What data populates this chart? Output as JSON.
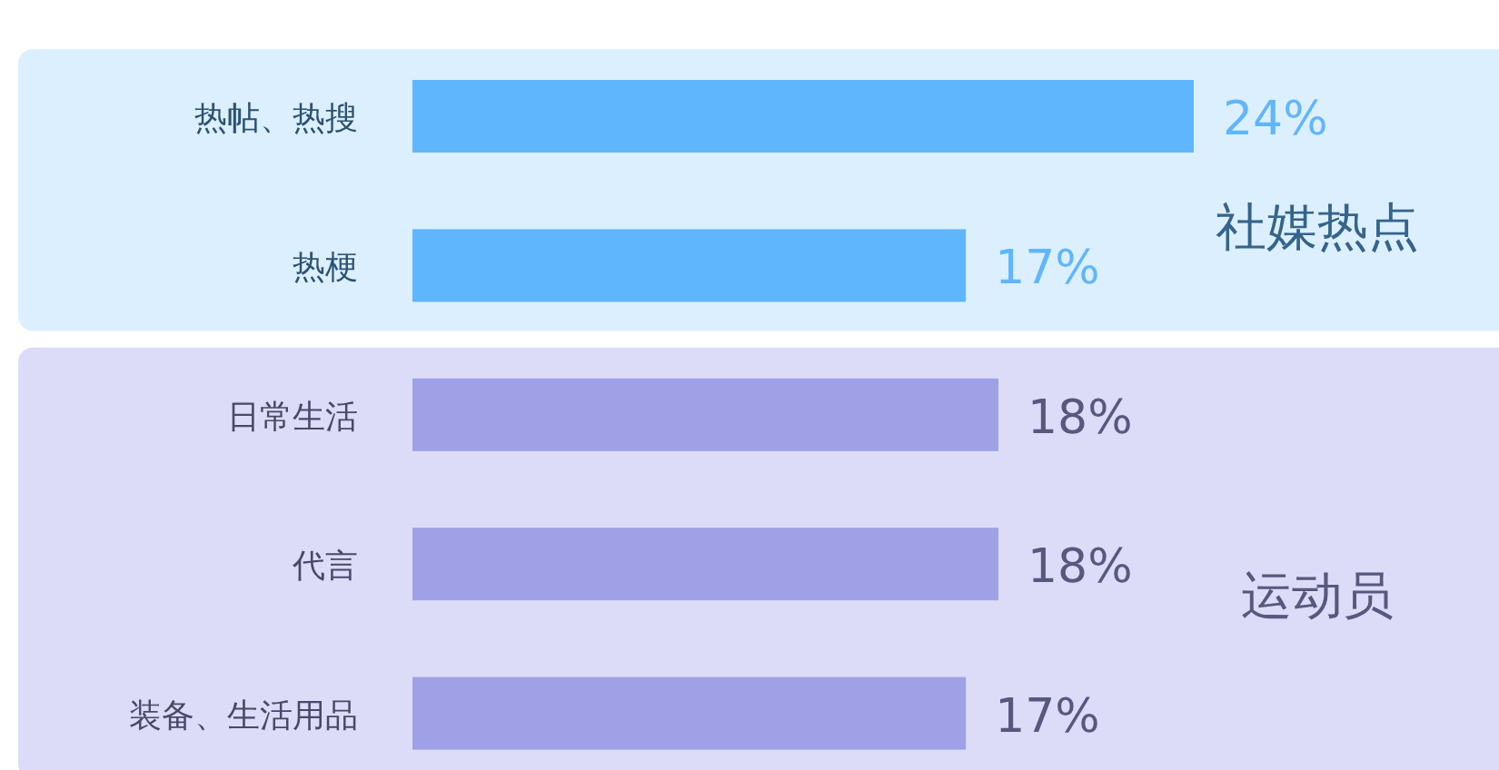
{
  "chart_data": {
    "type": "bar",
    "orientation": "horizontal",
    "categories": [
      "热帖、热搜",
      "热梗",
      "日常生活",
      "代言",
      "装备、生活用品"
    ],
    "values": [
      24,
      17,
      18,
      18,
      17
    ],
    "value_labels": [
      "24%",
      "17%",
      "18%",
      "18%",
      "17%"
    ],
    "colors": [
      "#5fb6fd",
      "#5fb6fd",
      "#a0a0e6",
      "#a0a0e6",
      "#a0a0e6"
    ],
    "bands": [
      {
        "axis": "y",
        "from": "热帖、热搜",
        "to": "热梗",
        "label": "社媒热点",
        "color": "#dcefff"
      },
      {
        "axis": "y",
        "from": "日常生活",
        "to": "装备、生活用品",
        "label": "运动员",
        "color": "#dcdcf8"
      }
    ]
  }
}
